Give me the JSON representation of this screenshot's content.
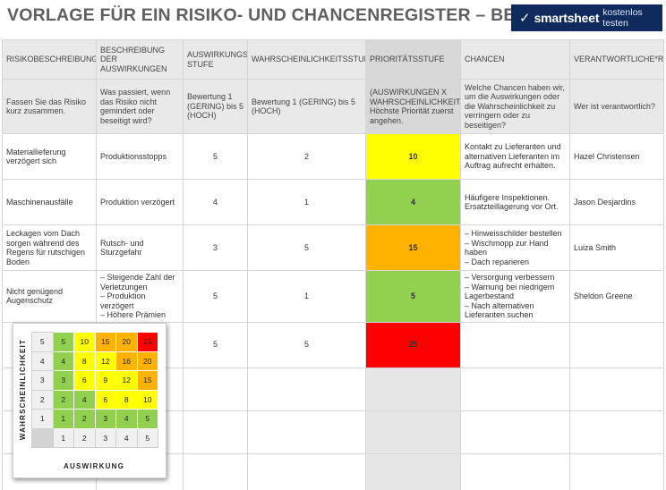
{
  "page": {
    "title": "VORLAGE FÜR EIN RISIKO- UND CHANCENREGISTER – BEISPIEL",
    "brand": {
      "logo_icon": "smartsheet-check-icon",
      "logo_glyph": "✓",
      "name": "smartsheet",
      "cta": "kostenlos testen",
      "bg": "#0f2a5c"
    }
  },
  "colors": {
    "red": "#ff0000",
    "orange": "#ffb200",
    "yellow": "#ffff00",
    "green": "#92d050",
    "header_gray": "#e9e9e9",
    "priority_gray": "#d8d8d8"
  },
  "table": {
    "headers": [
      "RISIKOBESCHREIBUNG",
      "BESCHREIBUNG DER AUSWIRKUNGEN",
      "AUSWIRKUNGS STUFE",
      "WAHRSCHEINLICHKEITSSTUFE",
      "PRIORITÄTSSTUFE",
      "CHANCEN",
      "VERANTWORTLICHE*R"
    ],
    "guide": [
      "Fassen Sie das Risiko kurz zusammen.",
      "Was passiert, wenn das Risiko nicht gemindert oder beseitigt wird?",
      "Bewertung 1 (GERING) bis 5 (HOCH)",
      "Bewertung 1 (GERING) bis 5 (HOCH)",
      "(AUSWIRKUNGEN X WAHRSCHEINLICHKEIT) Höchste Priorität zuerst angehen.",
      "Welche Chancen haben wir, um die Auswirkungen oder die Wahrscheinlichkeit zu verringern oder zu beseitigen?",
      "Wer ist verantwortlich?"
    ],
    "rows": [
      {
        "risk": "Materiallieferung verzögert sich",
        "impact_desc": "Produktionsstopps",
        "impact": "5",
        "likelihood": "2",
        "priority": "10",
        "priority_color": "#ffff00",
        "chances": "Kontakt zu Lieferanten und alternativen Lieferanten im Auftrag aufrecht erhalten.",
        "owner": "Hazel Christensen"
      },
      {
        "risk": "Maschinenausfälle",
        "impact_desc": "Produktion verzögert",
        "impact": "4",
        "likelihood": "1",
        "priority": "4",
        "priority_color": "#92d050",
        "chances": "Häufigere Inspektionen. Ersatzteillagerung vor Ort.",
        "owner": "Jason Desjardins"
      },
      {
        "risk": "Leckagen vom Dach sorgen während des Regens für rutschigen Boden",
        "impact_desc": "Rutsch- und Sturzgefahr",
        "impact": "3",
        "likelihood": "5",
        "priority": "15",
        "priority_color": "#ffb200",
        "chances": "– Hinweisschilder bestellen\n– Wischmopp zur Hand haben\n– Dach reparieren",
        "owner": "Luiza Smith"
      },
      {
        "risk": "Nicht genügend Augenschutz",
        "impact_desc": "– Steigende Zahl der Verletzungen\n– Produktion verzögert\n– Höhere Prämien",
        "impact": "5",
        "likelihood": "1",
        "priority": "5",
        "priority_color": "#92d050",
        "chances": "– Versorgung verbessern\n– Warnung bei niedrigem Lagerbestand\n– Nach alternativen Lieferanten suchen",
        "owner": "Sheldon Greene"
      },
      {
        "risk": "",
        "impact_desc": "",
        "impact": "5",
        "likelihood": "5",
        "priority": "25",
        "priority_color": "#ff0000",
        "chances": "",
        "owner": ""
      }
    ]
  },
  "matrix": {
    "y_axis_label": "WAHRSCHEINLICHKEIT",
    "x_axis_label": "AUSWIRKUNG",
    "y_labels": [
      "5",
      "4",
      "3",
      "2",
      "1"
    ],
    "x_labels": [
      "1",
      "2",
      "3",
      "4",
      "5"
    ],
    "cells": [
      [
        {
          "v": "5",
          "c": "#92d050"
        },
        {
          "v": "10",
          "c": "#ffff00"
        },
        {
          "v": "15",
          "c": "#ffb200"
        },
        {
          "v": "20",
          "c": "#ffb200"
        },
        {
          "v": "25",
          "c": "#ff0000"
        }
      ],
      [
        {
          "v": "4",
          "c": "#92d050"
        },
        {
          "v": "8",
          "c": "#ffff00"
        },
        {
          "v": "12",
          "c": "#ffff00"
        },
        {
          "v": "16",
          "c": "#ffb200"
        },
        {
          "v": "20",
          "c": "#ffb200"
        }
      ],
      [
        {
          "v": "3",
          "c": "#92d050"
        },
        {
          "v": "6",
          "c": "#ffff00"
        },
        {
          "v": "9",
          "c": "#ffff00"
        },
        {
          "v": "12",
          "c": "#ffff00"
        },
        {
          "v": "15",
          "c": "#ffb200"
        }
      ],
      [
        {
          "v": "2",
          "c": "#92d050"
        },
        {
          "v": "4",
          "c": "#92d050"
        },
        {
          "v": "6",
          "c": "#ffff00"
        },
        {
          "v": "8",
          "c": "#ffff00"
        },
        {
          "v": "10",
          "c": "#ffff00"
        }
      ],
      [
        {
          "v": "1",
          "c": "#92d050"
        },
        {
          "v": "2",
          "c": "#92d050"
        },
        {
          "v": "3",
          "c": "#92d050"
        },
        {
          "v": "4",
          "c": "#92d050"
        },
        {
          "v": "5",
          "c": "#92d050"
        }
      ]
    ]
  }
}
